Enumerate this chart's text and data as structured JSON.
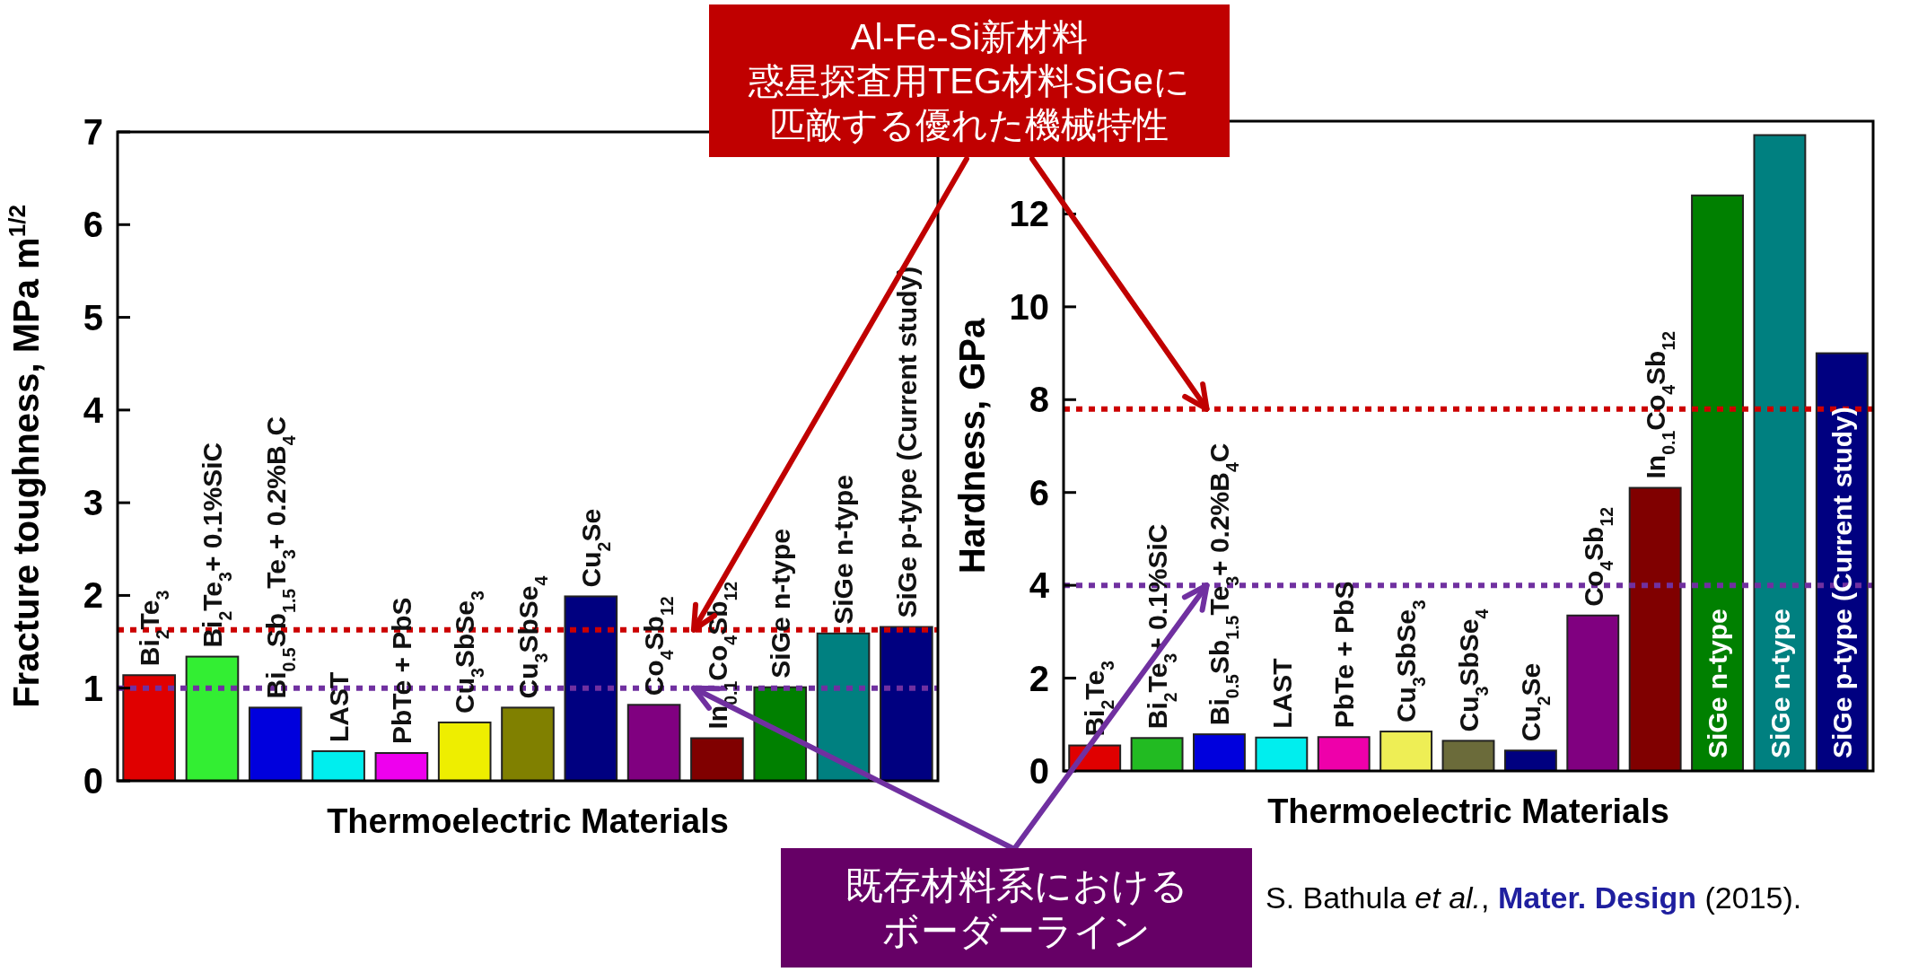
{
  "chart_data": [
    {
      "type": "bar",
      "ylabel": "Fracture toughness, MPa m$^{1/2}$",
      "xlabel": "Thermoelectric Materials",
      "categories": [
        "Bi$_{2}$Te$_{3}$",
        "Bi$_{2}$Te$_{3}$+ 0.1%SiC",
        "Bi$_{0.5}$Sb$_{1.5}$Te$_{3}$+ 0.2%B$_{4}$C",
        "LAST",
        "PbTe + PbS",
        "Cu$_{3}$SbSe$_{3}$",
        "Cu$_{3}$SbSe$_{4}$",
        "Cu$_{2}$Se",
        "Co$_{4}$Sb$_{12}$",
        "In$_{0.1}$Co$_{4}$Sb$_{12}$",
        "SiGe n-type",
        "SiGe n-type",
        "SiGe p-type (Current study)"
      ],
      "values": [
        1.14,
        1.34,
        0.79,
        0.32,
        0.3,
        0.63,
        0.79,
        1.99,
        0.82,
        0.46,
        1.01,
        1.59,
        1.66
      ],
      "colors": [
        "#e00000",
        "#33ee33",
        "#0000dd",
        "#00eeee",
        "#ee00ee",
        "#eeee00",
        "#808000",
        "#000080",
        "#800080",
        "#800000",
        "#008000",
        "#008080",
        "#000080"
      ],
      "ylim": [
        0,
        7
      ],
      "yticks": [
        0,
        1,
        2,
        3,
        4,
        5,
        6,
        7
      ],
      "ref_lines": [
        {
          "axis": "y",
          "value": 1.63,
          "color": "#cc0000",
          "line_style": "dotted"
        },
        {
          "axis": "y",
          "value": 1.0,
          "color": "#7030a0",
          "line_style": "dotted"
        }
      ],
      "annotations": [
        "Al-Fe-Si新材料",
        "惑星探査用TEG材料SiGeに",
        "匹敵する優れた機械特性",
        "既存材料系における",
        "ボーダーライン"
      ]
    },
    {
      "type": "bar",
      "ylabel": "Hardness, GPa",
      "xlabel": "Thermoelectric Materials",
      "categories": [
        "Bi$_{2}$Te$_{3}$",
        "Bi$_{2}$Te$_{3}$+ 0.1%SiC",
        "Bi$_{0.5}$Sb$_{1.5}$Te$_{3}$+ 0.2%B$_{4}$C",
        "LAST",
        "PbTe + PbS",
        "Cu$_{3}$SbSe$_{3}$",
        "Cu$_{3}$SbSe$_{4}$",
        "Cu$_{2}$Se",
        "Co$_{4}$Sb$_{12}$",
        "In$_{0.1}$Co$_{4}$Sb$_{12}$",
        "SiGe n-type",
        "SiGe n-type",
        "SiGe p-type (Current study)"
      ],
      "values": [
        0.55,
        0.71,
        0.79,
        0.72,
        0.73,
        0.85,
        0.65,
        0.44,
        3.35,
        6.1,
        12.4,
        13.7,
        9.0
      ],
      "colors": [
        "#e00000",
        "#22bb22",
        "#0000dd",
        "#00eeee",
        "#ee00aa",
        "#eeee55",
        "#6b6b3a",
        "#000080",
        "#800080",
        "#800000",
        "#008000",
        "#008080",
        "#000080"
      ],
      "ylim": [
        0,
        14
      ],
      "yticks": [
        0,
        2,
        4,
        6,
        8,
        10,
        12
      ],
      "ref_lines": [
        {
          "axis": "y",
          "value": 7.8,
          "color": "#cc0000",
          "line_style": "dotted"
        },
        {
          "axis": "y",
          "value": 4.0,
          "color": "#7030a0",
          "line_style": "dotted"
        }
      ],
      "annotations": [
        "S. Bathula *et al.*, **Mater. Design** (2015)."
      ]
    }
  ]
}
